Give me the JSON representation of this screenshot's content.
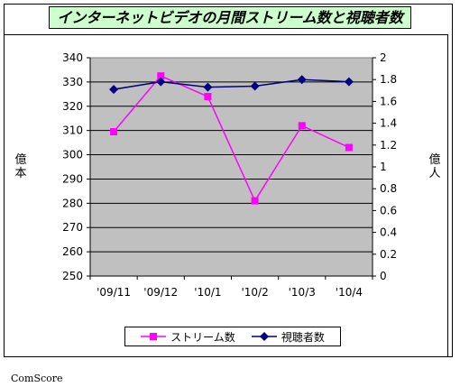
{
  "chart_data": {
    "type": "line",
    "title": "インターネットビデオの月間ストリーム数と視聴者数",
    "categories": [
      "'09/11",
      "'09/12",
      "'10/1",
      "'10/2",
      "'10/3",
      "'10/4"
    ],
    "series": [
      {
        "name": "ストリーム数",
        "axis": "left",
        "color": "#ff00ff",
        "marker": "square",
        "values": [
          309.5,
          332.5,
          324,
          281,
          312,
          303
        ]
      },
      {
        "name": "視聴者数",
        "axis": "right",
        "color": "#000080",
        "marker": "diamond",
        "values": [
          1.71,
          1.78,
          1.73,
          1.74,
          1.8,
          1.78
        ]
      }
    ],
    "left_axis": {
      "label": "億本",
      "ylim": [
        250,
        340
      ],
      "ticks": [
        250,
        260,
        270,
        280,
        290,
        300,
        310,
        320,
        330,
        340
      ]
    },
    "right_axis": {
      "label": "億人",
      "ylim": [
        0,
        2
      ],
      "ticks": [
        "0",
        "0.2",
        "0.4",
        "0.6",
        "0.8",
        "1",
        "1.2",
        "1.4",
        "1.6",
        "1.8",
        "2"
      ]
    },
    "plot_background": "#c0c0c0",
    "gridlines": true,
    "legend_position": "bottom"
  },
  "source": "ComScore"
}
